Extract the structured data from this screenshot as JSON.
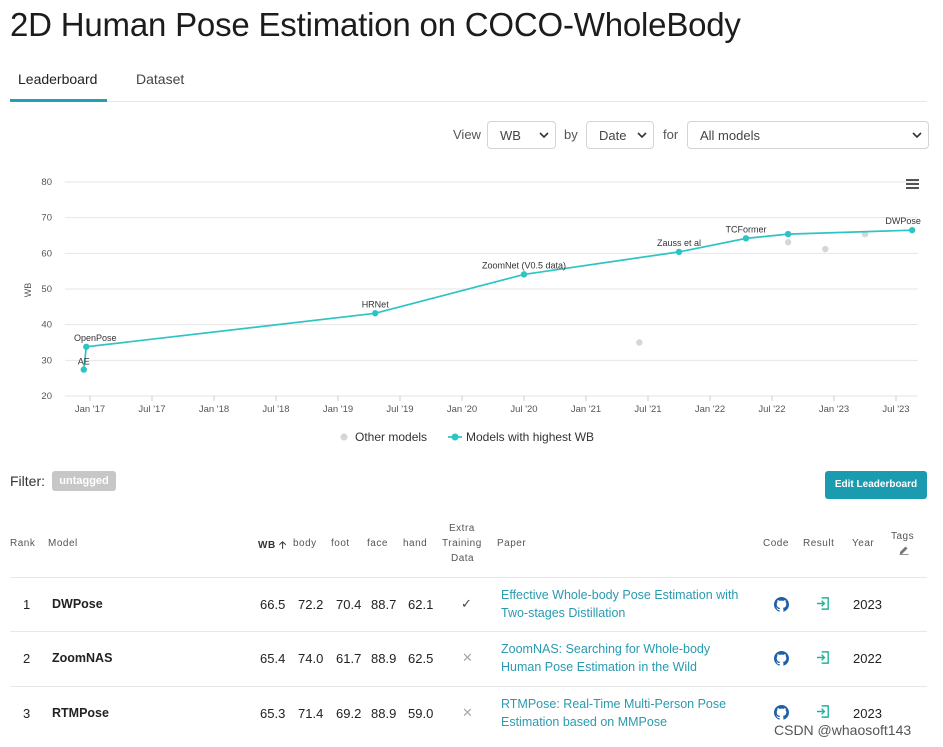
{
  "page": {
    "title": "2D Human Pose Estimation on COCO-WholeBody"
  },
  "tabs": [
    {
      "label": "Leaderboard",
      "active": true
    },
    {
      "label": "Dataset",
      "active": false
    }
  ],
  "controls": {
    "view_label": "View",
    "view_value": "WB",
    "by_label": "by",
    "by_value": "Date",
    "for_label": "for",
    "for_value": "All models"
  },
  "chart_data": {
    "type": "line",
    "ylabel": "WB",
    "ylim": [
      20,
      80
    ],
    "yticks": [
      20,
      30,
      40,
      50,
      60,
      70,
      80
    ],
    "xticks": [
      "Jan '17",
      "Jul '17",
      "Jan '18",
      "Jul '18",
      "Jan '19",
      "Jul '19",
      "Jan '20",
      "Jul '20",
      "Jan '21",
      "Jul '21",
      "Jan '22",
      "Jul '22",
      "Jan '23",
      "Jul '23"
    ],
    "x_range": [
      2016.8,
      2023.75
    ],
    "series": [
      {
        "name": "Models with highest WB",
        "color": "#2ec4c4",
        "points": [
          {
            "label": "AE",
            "x": 2016.95,
            "y": 27.4
          },
          {
            "label": "OpenPose",
            "x": 2016.97,
            "y": 33.8
          },
          {
            "label": "HRNet",
            "x": 2019.3,
            "y": 43.2
          },
          {
            "label": "ZoomNet (V0.5 data)",
            "x": 2020.5,
            "y": 54.1
          },
          {
            "label": "Zauss et al",
            "x": 2021.75,
            "y": 60.4
          },
          {
            "label": "TCFormer",
            "x": 2022.29,
            "y": 64.2
          },
          {
            "label": "",
            "x": 2022.63,
            "y": 65.4
          },
          {
            "label": "DWPose",
            "x": 2023.63,
            "y": 66.5
          }
        ]
      },
      {
        "name": "Other models",
        "color": "#d6d6d6",
        "points": [
          {
            "x": 2021.43,
            "y": 35.0
          },
          {
            "x": 2022.63,
            "y": 63.1
          },
          {
            "x": 2022.93,
            "y": 61.2
          },
          {
            "x": 2023.25,
            "y": 65.4
          }
        ]
      }
    ],
    "legend": [
      "Other models",
      "Models with highest WB"
    ]
  },
  "filter": {
    "label": "Filter:",
    "tag": "untagged",
    "edit_button": "Edit Leaderboard"
  },
  "table": {
    "headers": {
      "rank": "Rank",
      "model": "Model",
      "wb": "WB",
      "body": "body",
      "foot": "foot",
      "face": "face",
      "hand": "hand",
      "extra1": "Extra",
      "extra2": "Training",
      "extra3": "Data",
      "paper": "Paper",
      "code": "Code",
      "result": "Result",
      "year": "Year",
      "tags": "Tags"
    },
    "rows": [
      {
        "rank": "1",
        "model": "DWPose",
        "wb": "66.5",
        "body": "72.2",
        "foot": "70.4",
        "face": "88.7",
        "hand": "62.1",
        "extra": "✓",
        "paper1": "Effective Whole-body Pose Estimation with",
        "paper2": "Two-stages Distillation",
        "year": "2023"
      },
      {
        "rank": "2",
        "model": "ZoomNAS",
        "wb": "65.4",
        "body": "74.0",
        "foot": "61.7",
        "face": "88.9",
        "hand": "62.5",
        "extra": "✕",
        "paper1": "ZoomNAS: Searching for Whole-body",
        "paper2": "Human Pose Estimation in the Wild",
        "year": "2022"
      },
      {
        "rank": "3",
        "model": "RTMPose",
        "wb": "65.3",
        "body": "71.4",
        "foot": "69.2",
        "face": "88.9",
        "hand": "59.0",
        "extra": "✕",
        "paper1": "RTMPose: Real-Time Multi-Person Pose",
        "paper2": "Estimation based on MMPose",
        "year": "2023"
      }
    ]
  },
  "watermark": "CSDN @whaosoft143"
}
